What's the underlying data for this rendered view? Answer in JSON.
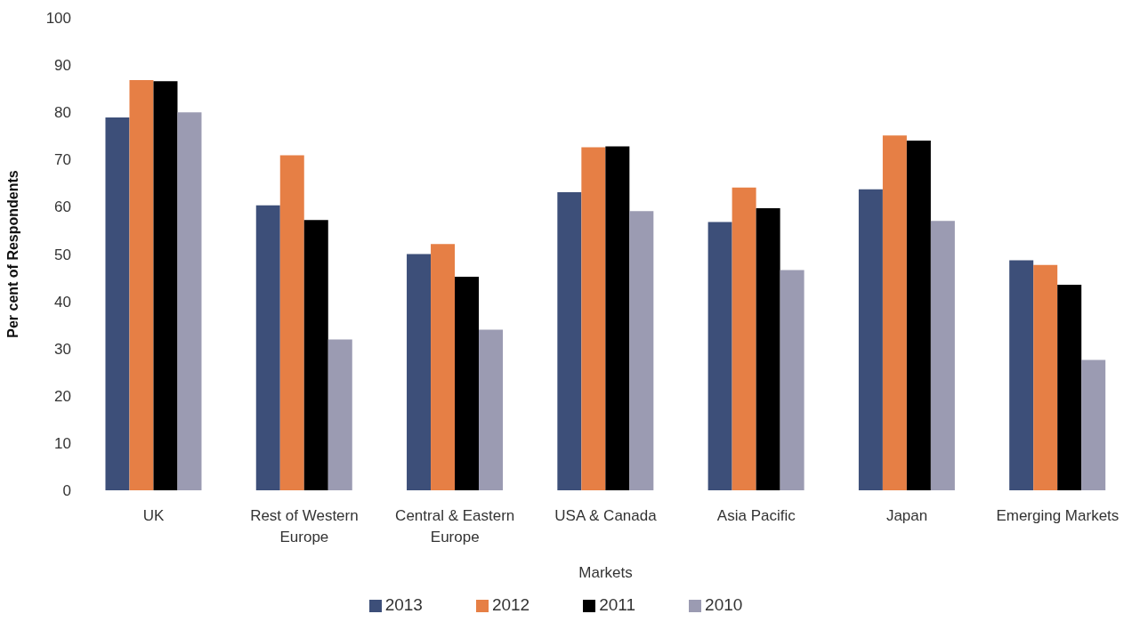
{
  "chart_data": {
    "type": "bar",
    "xlabel": "Markets",
    "ylabel": "Per cent of Respondents",
    "categories": [
      "UK",
      "Rest of Western Europe",
      "Central & Eastern Europe",
      "USA & Canada",
      "Asia Pacific",
      "Japan",
      "Emerging Markets"
    ],
    "series": [
      {
        "name": "2013",
        "color": "#3d4f79",
        "values": [
          78.9,
          60.3,
          50.0,
          63.1,
          56.8,
          63.7,
          48.7
        ]
      },
      {
        "name": "2012",
        "color": "#e67f45",
        "values": [
          86.8,
          70.9,
          52.1,
          72.6,
          64.1,
          75.1,
          47.7
        ]
      },
      {
        "name": "2011",
        "color": "#000000",
        "values": [
          86.6,
          57.2,
          45.2,
          72.8,
          59.7,
          74.0,
          43.5
        ]
      },
      {
        "name": "2010",
        "color": "#9b9bb2",
        "values": [
          80.0,
          31.9,
          34.0,
          59.1,
          46.6,
          57.0,
          27.6
        ]
      }
    ],
    "ylim": [
      0,
      100
    ],
    "yticks": [
      0,
      10,
      20,
      30,
      40,
      50,
      60,
      70,
      80,
      90,
      100
    ],
    "grid": false,
    "legend": "bottom"
  }
}
